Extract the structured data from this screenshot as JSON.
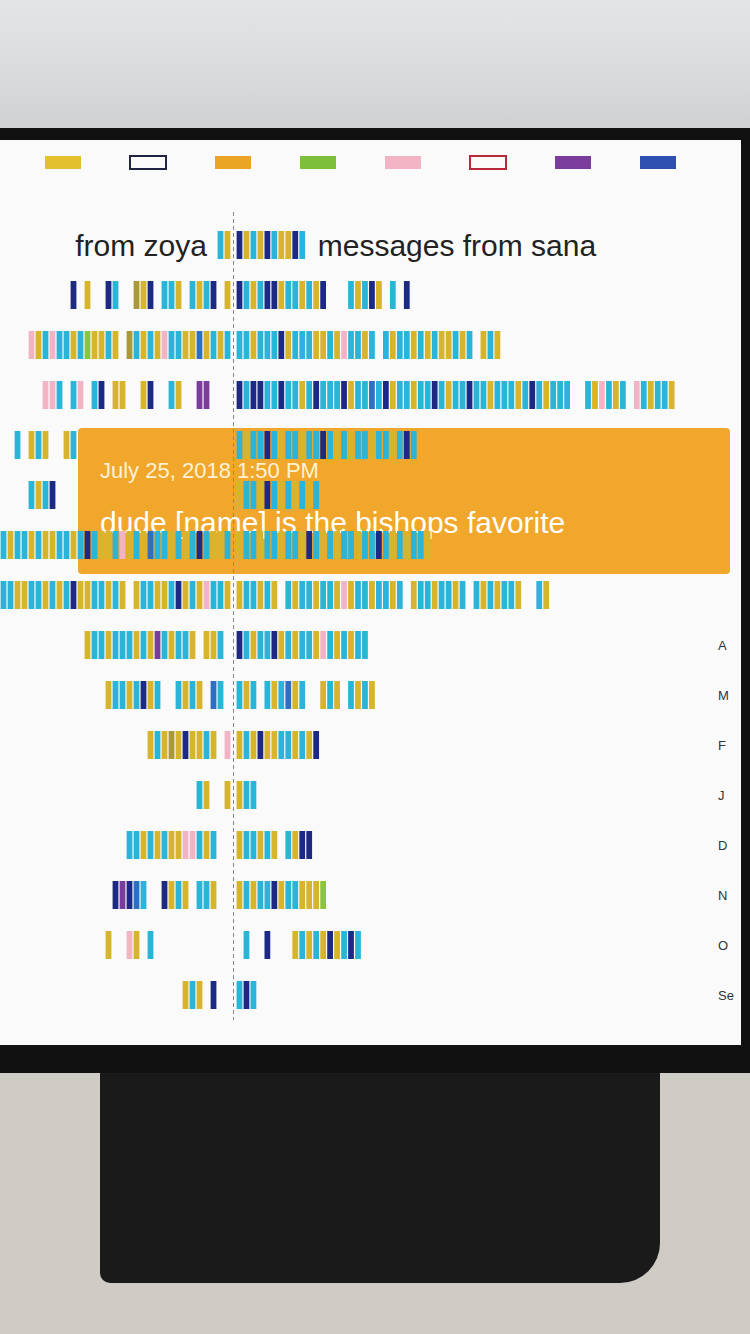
{
  "chart_data": {
    "type": "timeline",
    "tick_labels": "y",
    "categories": [
      null,
      null,
      null,
      null,
      null,
      null,
      null,
      null,
      "A",
      "M",
      "F",
      "J",
      "D",
      "N",
      "O",
      "Se"
    ],
    "swatches": [
      {
        "color": "#e3c02e",
        "marker": "filled"
      },
      {
        "color": "#222244",
        "marker": "outline"
      },
      {
        "color": "#eaa524",
        "marker": "filled"
      },
      {
        "color": "#7dbf3a",
        "marker": "filled"
      },
      {
        "color": "#f2b4c4",
        "marker": "filled"
      },
      {
        "color": "#b8283a",
        "marker": "outline"
      },
      {
        "color": "#7b3d9c",
        "marker": "filled"
      },
      {
        "color": "#2f4fb0",
        "marker": "filled"
      }
    ],
    "series": [
      {
        "name": "from zoya",
        "xlim": [
          0,
          33
        ],
        "values": [
          [
            "#d6b42c",
            "#2ab4d8"
          ],
          [
            "#d6b42c",
            null,
            "#1c2a86",
            "#2ab4d8",
            "#d6b42c",
            "#2ab4d8",
            null,
            "#d6b42c",
            "#2ab4d8",
            "#2ab4d8",
            null,
            "#1c2a86",
            "#d6b42c",
            "#a9993b",
            null,
            null,
            "#2ab4d8",
            "#1c2a86",
            null,
            null,
            "#d6b42c",
            null,
            "#1c2a86"
          ],
          [
            "#2ab4d8",
            "#d6b42c",
            "#2ab4d8",
            "#d6b42c",
            "#2f6fc2",
            "#d6b42c",
            "#d6b42c",
            "#2ab4d8",
            "#2ab4d8",
            "#f2b4c4",
            "#d6b42c",
            "#2ab4d8",
            "#d6b42c",
            "#2ab4d8",
            "#a9993b",
            null,
            "#d6b42c",
            "#2ab4d8",
            "#d6b42c",
            "#d6b42c",
            "#8cc43e",
            "#2ab4d8",
            "#d6b42c",
            "#2ab4d8",
            "#2ab4d8",
            "#f2b4c4",
            "#2ab4d8",
            "#d6b42c",
            "#f2b4c4"
          ],
          [
            null,
            null,
            null,
            "#7b3d9c",
            "#7b3d9c",
            null,
            null,
            "#d6b42c",
            "#2ab4d8",
            null,
            null,
            "#1c2a86",
            "#d6b42c",
            null,
            null,
            "#d6b42c",
            "#d6b42c",
            null,
            "#1c2a86",
            "#2ab4d8",
            null,
            "#f2b4c4",
            "#2ab4d8",
            null,
            "#2ab4d8",
            "#f2b4c4",
            "#f2b4c4"
          ],
          [
            null,
            null,
            null,
            null,
            null,
            null,
            null,
            null,
            null,
            null,
            null,
            null,
            null,
            null,
            null,
            null,
            null,
            null,
            null,
            null,
            null,
            null,
            "#2ab4d8",
            "#d6b42c",
            null,
            null,
            "#d6b42c",
            "#2ab4d8",
            "#d6b42c",
            null,
            "#2ab4d8"
          ],
          [
            null,
            null,
            null,
            null,
            null,
            null,
            null,
            null,
            null,
            null,
            null,
            null,
            null,
            null,
            null,
            null,
            null,
            null,
            null,
            null,
            null,
            null,
            null,
            null,
            null,
            "#1c2a86",
            "#2ab4d8",
            "#d6b42c",
            "#2ab4d8"
          ],
          [
            "#2ab4d8",
            "#d6b42c",
            "#d6b42c",
            "#2ab4d8",
            "#1c2a86",
            "#2ab4d8",
            "#d6b42c",
            "#2ab4d8",
            "#d6b42c",
            "#2ab4d8",
            "#2ab4d8",
            "#2f6fc2",
            "#d6b42c",
            "#2ab4d8",
            "#d6b42c",
            "#f2b4c4",
            "#2ab4d8",
            "#d6b42c",
            "#d6b42c",
            "#2ab4d8",
            "#1c2a86",
            "#2ab4d8",
            "#d6b42c",
            "#2ab4d8",
            "#2ab4d8",
            "#d6b42c",
            "#d6b42c",
            "#2ab4d8",
            "#d6b42c",
            "#2ab4d8",
            "#2ab4d8",
            "#d6b42c",
            "#2ab4d8"
          ],
          [
            "#d6b42c",
            "#2ab4d8",
            "#2ab4d8",
            "#f2b4c4",
            "#d6b42c",
            "#2ab4d8",
            "#d6b42c",
            "#1c2a86",
            "#2ab4d8",
            "#d6b42c",
            "#d6b42c",
            "#2ab4d8",
            "#2ab4d8",
            "#d6b42c",
            null,
            "#d6b42c",
            "#2ab4d8",
            "#d6b42c",
            "#2ab4d8",
            "#2ab4d8",
            "#d6b42c",
            "#d6b42c",
            "#1c2a86",
            "#2ab4d8",
            "#d6b42c",
            "#2ab4d8",
            "#d6b42c",
            "#2ab4d8",
            "#2ab4d8",
            "#d6b42c",
            "#d6b42c",
            "#2ab4d8",
            "#2ab4d8"
          ],
          [
            null,
            "#2ab4d8",
            "#d6b42c",
            "#d6b42c",
            null,
            "#d6b42c",
            "#2ab4d8",
            "#2ab4d8",
            "#d6b42c",
            "#2ab4d8",
            "#7b3d9c",
            "#d6b42c",
            "#2ab4d8",
            "#d6b42c",
            "#2ab4d8",
            "#2ab4d8",
            "#2ab4d8",
            "#d6b42c",
            "#2ab4d8",
            "#2ab4d8",
            "#d6b42c"
          ],
          [
            null,
            "#2ab4d8",
            "#2f6fc2",
            null,
            "#d6b42c",
            "#2ab4d8",
            "#d6b42c",
            "#2ab4d8",
            null,
            null,
            "#2ab4d8",
            "#d6b42c",
            "#1c2a86",
            "#2ab4d8",
            "#d6b42c",
            "#2ab4d8",
            "#2ab4d8",
            "#d6b42c"
          ],
          [
            "#f2b4c4",
            null,
            "#d6b42c",
            "#2ab4d8",
            "#d6b42c",
            "#d6b42c",
            "#1c2a86",
            "#d6b42c",
            "#a9993b",
            "#d6b42c",
            "#2ab4d8",
            "#d6b42c"
          ],
          [
            "#d6b42c",
            null,
            null,
            "#d6b42c",
            "#2ab4d8"
          ],
          [
            null,
            null,
            "#2ab4d8",
            "#d6b42c",
            "#2ab4d8",
            "#f2b4c4",
            "#f2b4c4",
            "#d6b42c",
            "#d6b42c",
            "#2ab4d8",
            "#d6b42c",
            "#2ab4d8",
            "#d6b42c",
            "#2ab4d8",
            "#2ab4d8"
          ],
          [
            null,
            null,
            "#d6b42c",
            "#2ab4d8",
            "#2ab4d8",
            null,
            "#d6b42c",
            "#2ab4d8",
            "#d6b42c",
            "#1c2a86",
            null,
            null,
            "#2ab4d8",
            "#2f6fc2",
            "#1c2a86",
            "#7b3d9c",
            "#1c2a86"
          ],
          [
            null,
            null,
            null,
            null,
            null,
            null,
            null,
            null,
            null,
            null,
            null,
            "#2ab4d8",
            null,
            "#d6b42c",
            "#f2b4c4",
            null,
            null,
            "#d6b42c"
          ],
          [
            null,
            null,
            "#1c2a86",
            null,
            "#d6b42c",
            "#2ab4d8",
            "#d6b42c"
          ]
        ]
      },
      {
        "name": "messages from sana",
        "xlim": [
          0,
          68
        ],
        "values": [
          [
            "#1c2a86",
            "#d6b42c",
            "#2ab4d8",
            "#d6b42c",
            "#1c2a86",
            "#2ab4d8",
            "#d6b42c",
            "#d6b42c",
            "#1c2a86",
            "#2ab4d8"
          ],
          [
            "#1c2a86",
            "#2ab4d8",
            "#d6b42c",
            "#2ab4d8",
            "#1c2a86",
            "#1c2a86",
            "#d6b42c",
            "#2ab4d8",
            "#2ab4d8",
            "#d6b42c",
            "#2ab4d8",
            "#d6b42c",
            "#1c2a86",
            null,
            null,
            null,
            "#2ab4d8",
            "#d6b42c",
            "#2ab4d8",
            "#1c2a86",
            "#d6b42c",
            null,
            "#2ab4d8",
            null,
            "#1c2a86"
          ],
          [
            "#2ab4d8",
            "#2ab4d8",
            "#d6b42c",
            "#2ab4d8",
            "#2ab4d8",
            "#2ab4d8",
            "#1c2a86",
            "#d6b42c",
            "#2ab4d8",
            "#2ab4d8",
            "#2ab4d8",
            "#d6b42c",
            "#d6b42c",
            "#2ab4d8",
            "#d6b42c",
            "#f2b4c4",
            "#2ab4d8",
            "#2ab4d8",
            "#d6b42c",
            "#2ab4d8",
            null,
            "#2ab4d8",
            "#d6b42c",
            "#2ab4d8",
            "#2ab4d8",
            "#d6b42c",
            "#2ab4d8",
            "#d6b42c",
            "#2ab4d8",
            "#d6b42c",
            "#d6b42c",
            "#2ab4d8",
            "#d6b42c",
            "#2ab4d8",
            null,
            "#d6b42c",
            "#2ab4d8",
            "#d6b42c"
          ],
          [
            "#1c2a86",
            "#2ab4d8",
            "#1c2a86",
            "#1c2a86",
            "#2ab4d8",
            "#2ab4d8",
            "#1c2a86",
            "#2ab4d8",
            "#2ab4d8",
            "#d6b42c",
            "#2ab4d8",
            "#1c2a86",
            "#2ab4d8",
            "#2ab4d8",
            "#2ab4d8",
            "#1c2a86",
            "#d6b42c",
            "#2ab4d8",
            "#2ab4d8",
            "#2f6fc2",
            "#2ab4d8",
            "#1c2a86",
            "#d6b42c",
            "#2ab4d8",
            "#2ab4d8",
            "#d6b42c",
            "#2ab4d8",
            "#2ab4d8",
            "#1c2a86",
            "#2ab4d8",
            "#d6b42c",
            "#2ab4d8",
            "#2ab4d8",
            "#1c2a86",
            "#2ab4d8",
            "#2ab4d8",
            "#d6b42c",
            "#2ab4d8",
            "#2ab4d8",
            "#2ab4d8",
            "#d6b42c",
            "#2ab4d8",
            "#1c2a86",
            "#2ab4d8",
            "#d6b42c",
            "#2ab4d8",
            "#2ab4d8",
            "#2ab4d8",
            null,
            null,
            "#2ab4d8",
            "#d6b42c",
            "#f2b4c4",
            "#2ab4d8",
            "#d6b42c",
            "#2ab4d8",
            null,
            "#f2b4c4",
            "#2ab4d8",
            "#d6b42c",
            "#2ab4d8",
            "#2ab4d8",
            "#d6b42c"
          ],
          [
            "#2ab4d8",
            "#d6b42c",
            "#2ab4d8",
            "#2ab4d8",
            "#1c2a86",
            "#2ab4d8",
            "#d6b42c",
            "#2ab4d8",
            "#2ab4d8",
            "#d6b42c",
            "#2ab4d8",
            "#2ab4d8",
            "#1c2a86",
            "#2ab4d8",
            "#d6b42c",
            "#2ab4d8",
            "#d6b42c",
            "#2ab4d8",
            "#2ab4d8",
            "#d6b42c",
            "#2ab4d8",
            "#2ab4d8",
            "#d6b42c",
            "#2ab4d8",
            "#1c2a86",
            "#2ab4d8"
          ],
          [
            "#d6b42c",
            "#2ab4d8",
            "#2ab4d8",
            "#d6b42c",
            "#1c2a86",
            "#2ab4d8",
            "#d6b42c",
            "#2ab4d8",
            "#d6b42c",
            "#2ab4d8",
            "#d6b42c",
            "#2ab4d8"
          ],
          [
            "#d6b42c",
            "#2ab4d8",
            "#2ab4d8",
            "#d6b42c",
            "#2ab4d8",
            "#2ab4d8",
            "#d6b42c",
            "#2ab4d8",
            "#2ab4d8",
            "#d6b42c",
            "#1c2a86",
            "#2ab4d8",
            "#d6b42c",
            "#2ab4d8",
            "#d6b42c",
            "#2ab4d8",
            "#2ab4d8",
            "#d6b42c",
            "#2ab4d8",
            "#2ab4d8",
            "#1c2a86",
            "#2ab4d8",
            "#d6b42c",
            "#2ab4d8",
            "#d6b42c",
            "#2ab4d8",
            "#2ab4d8",
            "#d6b42c"
          ],
          [
            "#d6b42c",
            "#2ab4d8",
            "#2ab4d8",
            "#d6b42c",
            "#2ab4d8",
            "#d6b42c",
            null,
            "#2ab4d8",
            "#d6b42c",
            "#2ab4d8",
            "#2ab4d8",
            "#d6b42c",
            "#2ab4d8",
            "#2ab4d8",
            "#d6b42c",
            "#f2b4c4",
            "#d6b42c",
            "#2ab4d8",
            "#2ab4d8",
            "#d6b42c",
            "#2ab4d8",
            "#2ab4d8",
            "#d6b42c",
            "#2ab4d8",
            null,
            "#d6b42c",
            "#2ab4d8",
            "#2ab4d8",
            "#d6b42c",
            "#2ab4d8",
            "#2ab4d8",
            "#d6b42c",
            "#2ab4d8",
            null,
            "#2ab4d8",
            "#d6b42c",
            "#2ab4d8",
            "#d6b42c",
            "#2ab4d8",
            "#2ab4d8",
            "#d6b42c",
            null,
            null,
            "#2ab4d8",
            "#d6b42c"
          ],
          [
            "#1c2a86",
            "#2ab4d8",
            "#d6b42c",
            "#2ab4d8",
            "#2ab4d8",
            "#1c2a86",
            "#d6b42c",
            "#2ab4d8",
            "#d6b42c",
            "#2ab4d8",
            "#2ab4d8",
            "#d6b42c",
            "#f2b4c4",
            "#2ab4d8",
            "#d6b42c",
            "#2ab4d8",
            "#d6b42c",
            "#2ab4d8",
            "#2ab4d8"
          ],
          [
            "#2ab4d8",
            "#d6b42c",
            "#2ab4d8",
            null,
            "#2ab4d8",
            "#d6b42c",
            "#2ab4d8",
            "#2f6fc2",
            "#d6b42c",
            "#2ab4d8",
            null,
            null,
            "#d6b42c",
            "#2ab4d8",
            "#d6b42c",
            null,
            "#2ab4d8",
            "#d6b42c",
            "#2ab4d8",
            "#d6b42c"
          ],
          [
            "#d6b42c",
            "#2ab4d8",
            "#d6b42c",
            "#1c2a86",
            "#d6b42c",
            "#d6b42c",
            "#2ab4d8",
            "#2ab4d8",
            "#d6b42c",
            "#2ab4d8",
            "#d6b42c",
            "#1c2a86"
          ],
          [
            "#d6b42c",
            "#2ab4d8",
            "#2ab4d8"
          ],
          [
            "#d6b42c",
            "#2ab4d8",
            "#2ab4d8",
            "#d6b42c",
            "#2ab4d8",
            "#d6b42c",
            null,
            "#2ab4d8",
            "#d6b42c",
            "#1c2a86",
            "#1c2a86"
          ],
          [
            "#d6b42c",
            "#2ab4d8",
            "#d6b42c",
            "#2ab4d8",
            "#2ab4d8",
            "#1c2a86",
            "#d6b42c",
            "#2ab4d8",
            "#2ab4d8",
            "#d6b42c",
            "#d6b42c",
            "#d6b42c",
            "#8cc43e"
          ],
          [
            null,
            "#2ab4d8",
            null,
            null,
            "#1c2a86",
            null,
            null,
            null,
            "#d6b42c",
            "#2ab4d8",
            "#d6b42c",
            "#2ab4d8",
            "#d6b42c",
            "#1c2a86",
            "#d6b42c",
            "#2ab4d8",
            "#1c2a86",
            "#2ab4d8"
          ],
          [
            "#2ab4d8",
            "#1c2a86",
            "#2ab4d8"
          ]
        ]
      }
    ],
    "annotations": [
      {
        "date": "July 25, 2018 1:50 PM",
        "text": "dude [name] is the bishops favorite",
        "color": "#f0a72b"
      }
    ]
  }
}
